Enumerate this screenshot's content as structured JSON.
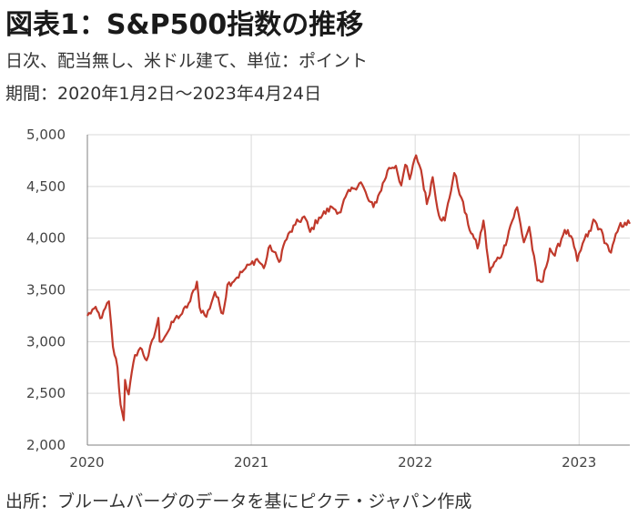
{
  "header": {
    "title": "図表1：S&P500指数の推移",
    "subtitle": "日次、配当無し、米ドル建て、単位：ポイント",
    "period": "期間：2020年1月2日～2023年4月24日"
  },
  "footer": {
    "source": "出所：ブルームバーグのデータを基にピクテ・ジャパン作成"
  },
  "colors": {
    "line": "#c0392b",
    "grid": "#d9d9d9",
    "axis": "#808080"
  },
  "chart_data": {
    "type": "line",
    "title": "",
    "xlabel": "",
    "ylabel": "",
    "ylim": [
      2000,
      5000
    ],
    "xlim": [
      "2020-01-02",
      "2023-04-24"
    ],
    "grid": true,
    "yticks": [
      2000,
      2500,
      3000,
      3500,
      4000,
      4500,
      5000
    ],
    "ytick_labels": [
      "2,000",
      "2,500",
      "3,000",
      "3,500",
      "4,000",
      "4,500",
      "5,000"
    ],
    "xticks": [
      "2020-01-01",
      "2021-01-01",
      "2022-01-01",
      "2023-01-01"
    ],
    "xtick_labels": [
      "2020",
      "2021",
      "2022",
      "2023"
    ],
    "series": [
      {
        "x": [
          "2020-01-02",
          "2020-01-17",
          "2020-02-03",
          "2020-02-19",
          "2020-02-28",
          "2020-03-09",
          "2020-03-16",
          "2020-03-23",
          "2020-03-26",
          "2020-04-03",
          "2020-04-17",
          "2020-04-29",
          "2020-05-13",
          "2020-05-29",
          "2020-06-08",
          "2020-06-11",
          "2020-06-30",
          "2020-07-15",
          "2020-07-31",
          "2020-08-18",
          "2020-09-02",
          "2020-09-08",
          "2020-09-23",
          "2020-10-12",
          "2020-10-30",
          "2020-11-09",
          "2020-11-30",
          "2020-12-15",
          "2020-12-31",
          "2021-01-14",
          "2021-01-29",
          "2021-02-12",
          "2021-03-04",
          "2021-03-17",
          "2021-04-09",
          "2021-04-29",
          "2021-05-12",
          "2021-06-01",
          "2021-06-30",
          "2021-07-19",
          "2021-07-30",
          "2021-08-16",
          "2021-09-02",
          "2021-09-20",
          "2021-09-30",
          "2021-10-14",
          "2021-11-04",
          "2021-11-19",
          "2021-12-01",
          "2021-12-10",
          "2021-12-20",
          "2022-01-03",
          "2022-01-14",
          "2022-01-27",
          "2022-02-09",
          "2022-02-23",
          "2022-03-08",
          "2022-03-29",
          "2022-04-14",
          "2022-04-29",
          "2022-05-12",
          "2022-05-20",
          "2022-06-02",
          "2022-06-16",
          "2022-06-30",
          "2022-07-15",
          "2022-08-01",
          "2022-08-16",
          "2022-08-31",
          "2022-09-12",
          "2022-09-30",
          "2022-10-12",
          "2022-10-28",
          "2022-11-08",
          "2022-11-30",
          "2022-12-14",
          "2022-12-28",
          "2023-01-13",
          "2023-01-27",
          "2023-02-02",
          "2023-02-16",
          "2023-03-02",
          "2023-03-13",
          "2023-03-31",
          "2023-04-13",
          "2023-04-24"
        ],
        "values": [
          3250,
          3320,
          3230,
          3390,
          2950,
          2750,
          2390,
          2240,
          2630,
          2490,
          2870,
          2940,
          2820,
          3040,
          3230,
          3000,
          3100,
          3220,
          3270,
          3390,
          3580,
          3330,
          3240,
          3480,
          3270,
          3550,
          3620,
          3690,
          3750,
          3800,
          3710,
          3930,
          3770,
          3970,
          4130,
          4210,
          4060,
          4200,
          4300,
          4250,
          4400,
          4480,
          4540,
          4360,
          4300,
          4440,
          4680,
          4700,
          4510,
          4710,
          4570,
          4800,
          4660,
          4330,
          4590,
          4220,
          4170,
          4630,
          4390,
          4130,
          4000,
          3900,
          4170,
          3670,
          3780,
          3860,
          4120,
          4300,
          3960,
          4110,
          3590,
          3580,
          3900,
          3830,
          4080,
          4020,
          3780,
          3990,
          4070,
          4180,
          4090,
          3950,
          3860,
          4110,
          4150,
          4140
        ]
      }
    ]
  }
}
